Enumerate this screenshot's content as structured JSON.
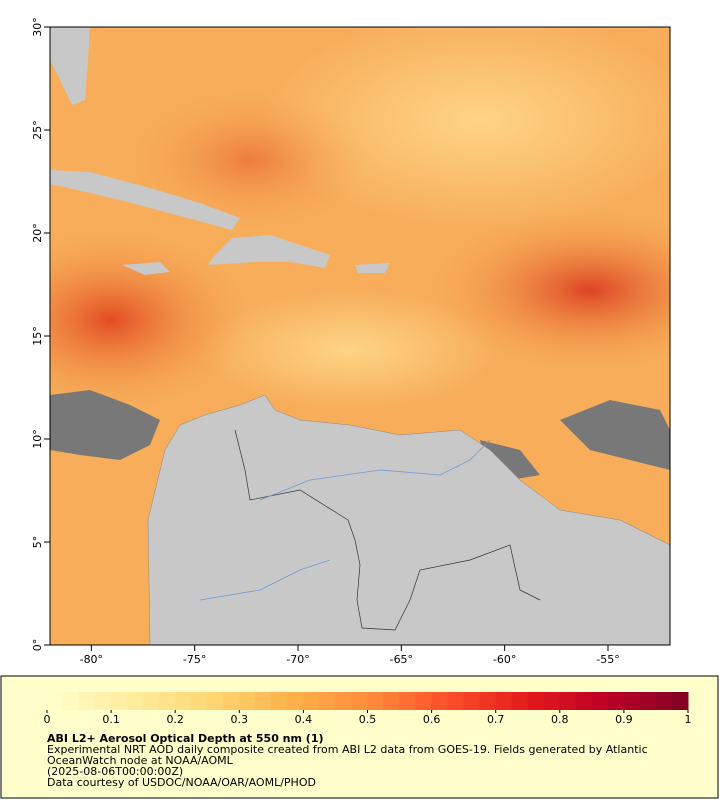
{
  "map": {
    "xlim": [
      -82,
      -52
    ],
    "ylim": [
      0,
      30
    ],
    "xticks": [
      {
        "value": -80,
        "label": "-80°"
      },
      {
        "value": -75,
        "label": "-75°"
      },
      {
        "value": -70,
        "label": "-70°"
      },
      {
        "value": -65,
        "label": "-65°"
      },
      {
        "value": -60,
        "label": "-60°"
      },
      {
        "value": -55,
        "label": "-55°"
      }
    ],
    "yticks": [
      {
        "value": 0,
        "label": "0°"
      },
      {
        "value": 5,
        "label": "5°"
      },
      {
        "value": 10,
        "label": "10°"
      },
      {
        "value": 15,
        "label": "15°"
      },
      {
        "value": 20,
        "label": "20°"
      },
      {
        "value": 25,
        "label": "25°"
      },
      {
        "value": 30,
        "label": "30°"
      }
    ]
  },
  "legend": {
    "colorbar": {
      "lim": [
        0,
        1
      ],
      "ticks": [
        0,
        0.1,
        0.2,
        0.3,
        0.4,
        0.5,
        0.6,
        0.7,
        0.8,
        0.9,
        1
      ],
      "stops": [
        "#ffffcc",
        "#ffeda0",
        "#fed976",
        "#feb24c",
        "#fd8d3c",
        "#fc4e2a",
        "#e31a1c",
        "#bd0026",
        "#800026"
      ]
    },
    "title": "ABI L2+ Aerosol Optical Depth at 550 nm (1)",
    "lines": [
      "Experimental NRT AOD daily composite created from ABI L2 data from GOES-19. Fields generated by Atlantic",
      "OceanWatch node at NOAA/AOML",
      "(2025-08-06T00:00:00Z)",
      "Data courtesy of USDOC/NOAA/OAR/AOML/PHOD"
    ]
  }
}
